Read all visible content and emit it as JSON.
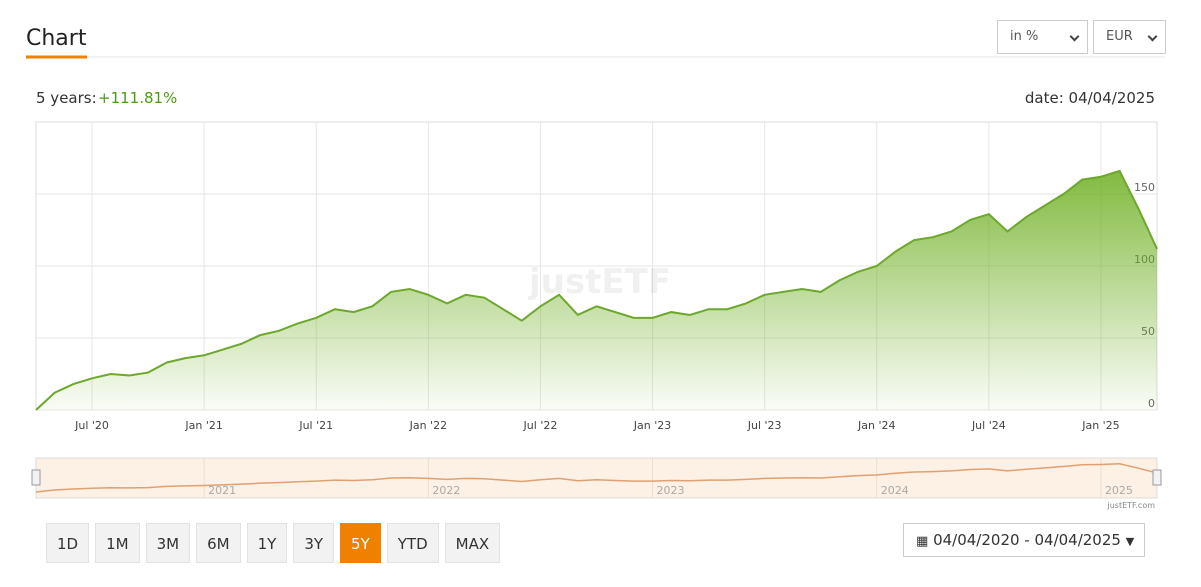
{
  "header": {
    "title": "Chart",
    "unit_select": "in %",
    "currency_select": "EUR"
  },
  "summary": {
    "label": "5 years:",
    "value": "+111.81%",
    "date": "date: 04/04/2025"
  },
  "chart_data": {
    "type": "line",
    "color": "#6ca82c",
    "grid": true,
    "watermark": "justETF",
    "x": [
      "2020-04",
      "2020-05",
      "2020-06",
      "2020-07",
      "2020-08",
      "2020-09",
      "2020-10",
      "2020-11",
      "2020-12",
      "2021-01",
      "2021-02",
      "2021-03",
      "2021-04",
      "2021-05",
      "2021-06",
      "2021-07",
      "2021-08",
      "2021-09",
      "2021-10",
      "2021-11",
      "2021-12",
      "2022-01",
      "2022-02",
      "2022-03",
      "2022-04",
      "2022-05",
      "2022-06",
      "2022-07",
      "2022-08",
      "2022-09",
      "2022-10",
      "2022-11",
      "2022-12",
      "2023-01",
      "2023-02",
      "2023-03",
      "2023-04",
      "2023-05",
      "2023-06",
      "2023-07",
      "2023-08",
      "2023-09",
      "2023-10",
      "2023-11",
      "2023-12",
      "2024-01",
      "2024-02",
      "2024-03",
      "2024-04",
      "2024-05",
      "2024-06",
      "2024-07",
      "2024-08",
      "2024-09",
      "2024-10",
      "2024-11",
      "2024-12",
      "2025-01",
      "2025-02",
      "2025-03",
      "2025-04"
    ],
    "values": [
      0,
      12,
      18,
      22,
      25,
      24,
      26,
      33,
      36,
      38,
      42,
      46,
      52,
      55,
      60,
      64,
      70,
      68,
      72,
      82,
      84,
      80,
      74,
      80,
      78,
      70,
      62,
      72,
      80,
      66,
      72,
      68,
      64,
      64,
      68,
      66,
      70,
      70,
      74,
      80,
      82,
      84,
      82,
      90,
      96,
      100,
      110,
      118,
      120,
      124,
      132,
      136,
      124,
      134,
      142,
      150,
      160,
      162,
      166,
      140,
      111.81
    ],
    "xlim": [
      "2020-04",
      "2025-04"
    ],
    "xticks": [
      {
        "value": "2020-07",
        "label": "Jul '20"
      },
      {
        "value": "2021-01",
        "label": "Jan '21"
      },
      {
        "value": "2021-07",
        "label": "Jul '21"
      },
      {
        "value": "2022-01",
        "label": "Jan '22"
      },
      {
        "value": "2022-07",
        "label": "Jul '22"
      },
      {
        "value": "2023-01",
        "label": "Jan '23"
      },
      {
        "value": "2023-07",
        "label": "Jul '23"
      },
      {
        "value": "2024-01",
        "label": "Jan '24"
      },
      {
        "value": "2024-07",
        "label": "Jul '24"
      },
      {
        "value": "2025-01",
        "label": "Jan '25"
      }
    ],
    "ylim": [
      0,
      200
    ],
    "yticks": [
      0,
      50,
      100,
      150
    ]
  },
  "navigator": {
    "labels": [
      "2021",
      "2022",
      "2023",
      "2024",
      "2025"
    ],
    "credit": "justETF.com"
  },
  "buttons": [
    "1D",
    "1M",
    "3M",
    "6M",
    "1Y",
    "3Y",
    "5Y",
    "YTD",
    "MAX"
  ],
  "active_button": "5Y",
  "date_range": "04/04/2020 - 04/04/2025"
}
